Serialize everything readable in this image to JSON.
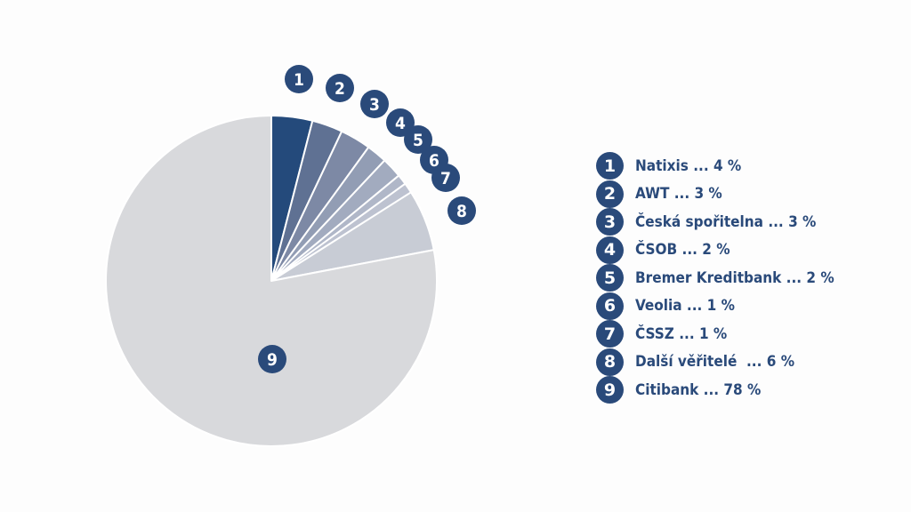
{
  "chart_data": {
    "type": "pie",
    "start": "12 o'clock",
    "direction": "clockwise",
    "slices": [
      {
        "id": "1",
        "label": "Natixis ... 4 %",
        "name": "Natixis",
        "value": 4,
        "color": "#244a7b"
      },
      {
        "id": "2",
        "label": "AWT ... 3 %",
        "name": "AWT",
        "value": 3,
        "color": "#5f7193"
      },
      {
        "id": "3",
        "label": "Česká spořitelna ... 3 %",
        "name": "Česká spořitelna",
        "value": 3,
        "color": "#7d89a5"
      },
      {
        "id": "4",
        "label": "ČSOB ... 2 %",
        "name": "ČSOB",
        "value": 2,
        "color": "#929db4"
      },
      {
        "id": "5",
        "label": "Bremer Kreditbank ... 2 %",
        "name": "Bremer Kreditbank",
        "value": 2,
        "color": "#a2abbf"
      },
      {
        "id": "6",
        "label": "Veolia ... 1 %",
        "name": "Veolia",
        "value": 1,
        "color": "#b0b7c8"
      },
      {
        "id": "7",
        "label": "ČSSZ ... 1 %",
        "name": "ČSSZ",
        "value": 1,
        "color": "#bdc2d0"
      },
      {
        "id": "8",
        "label": "Další věřitelé  ... 6 %",
        "name": "Další věřitelé",
        "value": 6,
        "color": "#c8ccd5"
      },
      {
        "id": "9",
        "label": "Citibank ... 78 %",
        "name": "Citibank",
        "value": 78,
        "color": "#d8d9dc"
      }
    ],
    "marker_color": "#2a4a7a"
  }
}
